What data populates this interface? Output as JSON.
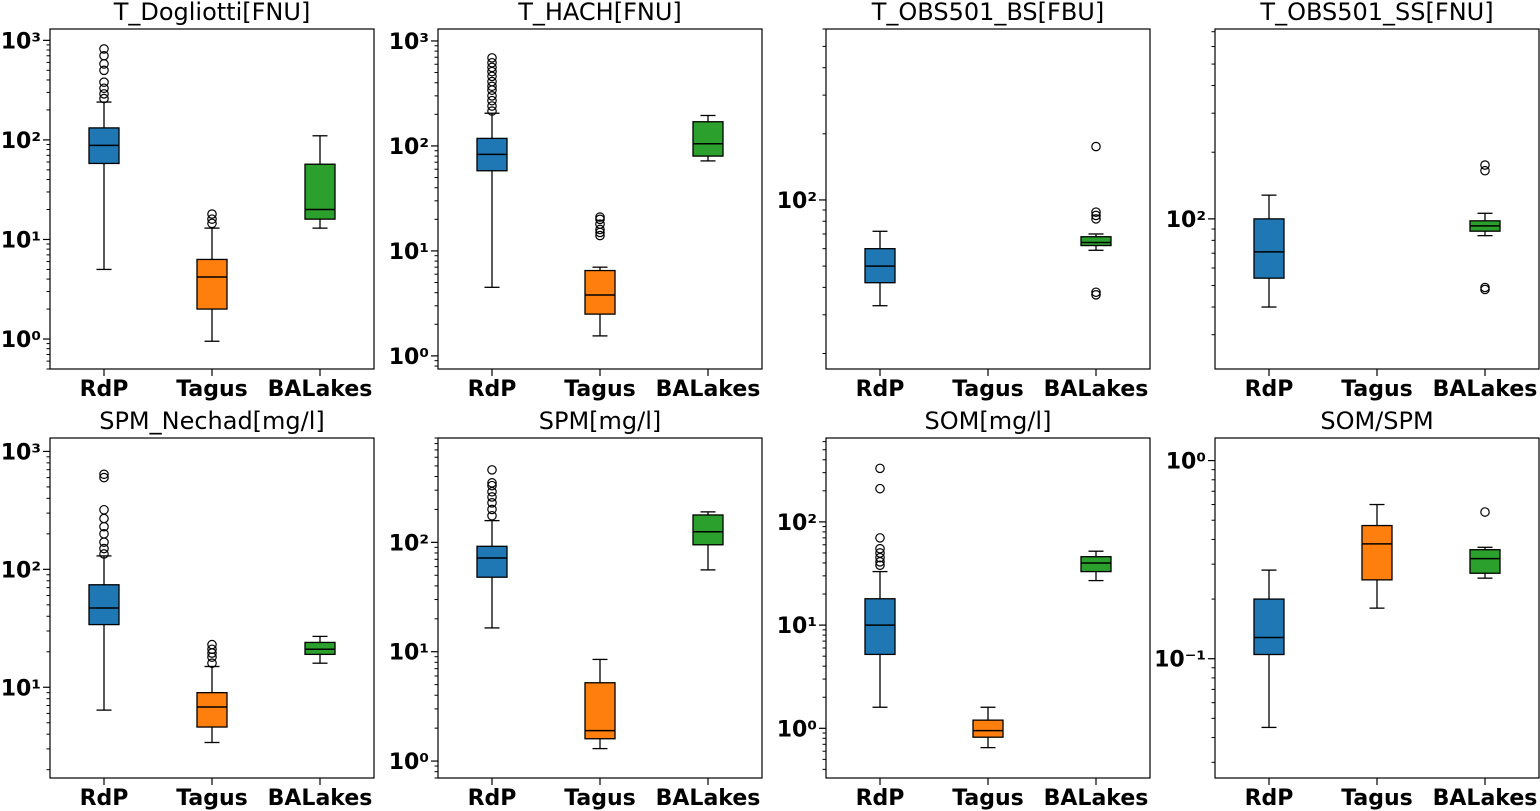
{
  "colors": {
    "RdP": "#1f77b4",
    "Tagus": "#ff7f0e",
    "BALakes": "#2ca02c",
    "outlier": "#000000"
  },
  "chart_data": [
    {
      "type": "boxplot",
      "title": "T_Dogliotti[FNU]",
      "yscale": "log",
      "ylim": [
        0.5,
        1300
      ],
      "categories": [
        "RdP",
        "Tagus",
        "BALakes"
      ],
      "yticks": [
        {
          "v": 1,
          "label": "10⁰"
        },
        {
          "v": 10,
          "label": "10¹"
        },
        {
          "v": 100,
          "label": "10²"
        },
        {
          "v": 1000,
          "label": "10³"
        }
      ],
      "series": [
        {
          "category": "RdP",
          "whislo": 5,
          "q1": 58,
          "med": 88,
          "q3": 132,
          "whishi": 240,
          "fliers": [
            260,
            290,
            330,
            380,
            500,
            580,
            700,
            820
          ]
        },
        {
          "category": "Tagus",
          "whislo": 0.95,
          "q1": 2,
          "med": 4.2,
          "q3": 6.3,
          "whishi": 13,
          "fliers": [
            14.5,
            16,
            18
          ]
        },
        {
          "category": "BALakes",
          "whislo": 13,
          "q1": 16,
          "med": 20,
          "q3": 57,
          "whishi": 110,
          "fliers": []
        }
      ]
    },
    {
      "type": "boxplot",
      "title": "T_HACH[FNU]",
      "yscale": "log",
      "ylim": [
        0.75,
        1300
      ],
      "categories": [
        "RdP",
        "Tagus",
        "BALakes"
      ],
      "yticks": [
        {
          "v": 1,
          "label": "10⁰"
        },
        {
          "v": 10,
          "label": "10¹"
        },
        {
          "v": 100,
          "label": "10²"
        },
        {
          "v": 1000,
          "label": "10³"
        }
      ],
      "series": [
        {
          "category": "RdP",
          "whislo": 4.5,
          "q1": 58,
          "med": 83,
          "q3": 118,
          "whishi": 205,
          "fliers": [
            215,
            240,
            270,
            300,
            340,
            370,
            410,
            460,
            510,
            560,
            620,
            690
          ]
        },
        {
          "category": "Tagus",
          "whislo": 1.55,
          "q1": 2.5,
          "med": 3.8,
          "q3": 6.5,
          "whishi": 7,
          "fliers": [
            14,
            15,
            16,
            18,
            20,
            21
          ]
        },
        {
          "category": "BALakes",
          "whislo": 72,
          "q1": 80,
          "med": 105,
          "q3": 170,
          "whishi": 195,
          "fliers": []
        }
      ]
    },
    {
      "type": "boxplot",
      "title": "T_OBS501_BS[FBU]",
      "yscale": "log",
      "ylim": [
        17,
        600
      ],
      "categories": [
        "RdP",
        "Tagus",
        "BALakes"
      ],
      "yticks": [
        {
          "v": 100,
          "label": "10²"
        }
      ],
      "series": [
        {
          "category": "RdP",
          "whislo": 33,
          "q1": 42,
          "med": 50,
          "q3": 60,
          "whishi": 72,
          "fliers": []
        },
        {
          "category": "BALakes",
          "whislo": 59,
          "q1": 62,
          "med": 64,
          "q3": 68,
          "whishi": 70,
          "fliers": [
            37,
            38,
            82,
            85,
            88,
            175
          ]
        }
      ]
    },
    {
      "type": "boxplot",
      "title": "T_OBS501_SS[FNU]",
      "yscale": "log",
      "ylim": [
        21,
        720
      ],
      "categories": [
        "RdP",
        "Tagus",
        "BALakes"
      ],
      "yticks": [
        {
          "v": 100,
          "label": "10²"
        }
      ],
      "series": [
        {
          "category": "RdP",
          "whislo": 40,
          "q1": 54,
          "med": 71,
          "q3": 100,
          "whishi": 128,
          "fliers": []
        },
        {
          "category": "BALakes",
          "whislo": 84,
          "q1": 88,
          "med": 93,
          "q3": 98,
          "whishi": 106,
          "fliers": [
            48,
            49,
            165,
            175
          ]
        }
      ]
    },
    {
      "type": "boxplot",
      "title": "SPM_Nechad[mg/l]",
      "yscale": "log",
      "ylim": [
        1.7,
        1300
      ],
      "categories": [
        "RdP",
        "Tagus",
        "BALakes"
      ],
      "yticks": [
        {
          "v": 10,
          "label": "10¹"
        },
        {
          "v": 100,
          "label": "10²"
        },
        {
          "v": 1000,
          "label": "10³"
        }
      ],
      "series": [
        {
          "category": "RdP",
          "whislo": 6.4,
          "q1": 34,
          "med": 47,
          "q3": 74,
          "whishi": 130,
          "fliers": [
            135,
            150,
            170,
            200,
            230,
            270,
            320,
            600,
            640
          ]
        },
        {
          "category": "Tagus",
          "whislo": 3.4,
          "q1": 4.6,
          "med": 6.8,
          "q3": 9,
          "whishi": 15,
          "fliers": [
            16,
            18,
            19.5,
            21,
            23
          ]
        },
        {
          "category": "BALakes",
          "whislo": 16,
          "q1": 19,
          "med": 21,
          "q3": 24,
          "whishi": 27,
          "fliers": []
        }
      ]
    },
    {
      "type": "boxplot",
      "title": "SPM[mg/l]",
      "yscale": "log",
      "ylim": [
        0.7,
        900
      ],
      "categories": [
        "RdP",
        "Tagus",
        "BALakes"
      ],
      "yticks": [
        {
          "v": 1,
          "label": "10⁰"
        },
        {
          "v": 10,
          "label": "10¹"
        },
        {
          "v": 100,
          "label": "10²"
        }
      ],
      "series": [
        {
          "category": "RdP",
          "whislo": 16.5,
          "q1": 48,
          "med": 72,
          "q3": 92,
          "whishi": 158,
          "fliers": [
            175,
            200,
            230,
            260,
            290,
            330,
            350,
            460
          ]
        },
        {
          "category": "Tagus",
          "whislo": 1.3,
          "q1": 1.6,
          "med": 1.9,
          "q3": 5.2,
          "whishi": 8.5,
          "fliers": []
        },
        {
          "category": "BALakes",
          "whislo": 56,
          "q1": 95,
          "med": 125,
          "q3": 178,
          "whishi": 190,
          "fliers": []
        }
      ]
    },
    {
      "type": "boxplot",
      "title": "SOM[mg/l]",
      "yscale": "log",
      "ylim": [
        0.33,
        650
      ],
      "categories": [
        "RdP",
        "Tagus",
        "BALakes"
      ],
      "yticks": [
        {
          "v": 1,
          "label": "10⁰"
        },
        {
          "v": 10,
          "label": "10¹"
        },
        {
          "v": 100,
          "label": "10²"
        }
      ],
      "series": [
        {
          "category": "RdP",
          "whislo": 1.6,
          "q1": 5.2,
          "med": 10,
          "q3": 18,
          "whishi": 33,
          "fliers": [
            38,
            41,
            45,
            50,
            55,
            70,
            210,
            330
          ]
        },
        {
          "category": "Tagus",
          "whislo": 0.65,
          "q1": 0.82,
          "med": 0.95,
          "q3": 1.2,
          "whishi": 1.6,
          "fliers": []
        },
        {
          "category": "BALakes",
          "whislo": 27,
          "q1": 33,
          "med": 40,
          "q3": 46,
          "whishi": 52,
          "fliers": []
        }
      ]
    },
    {
      "type": "boxplot",
      "title": "SOM/SPM",
      "yscale": "log",
      "ylim": [
        0.025,
        1.3
      ],
      "categories": [
        "RdP",
        "Tagus",
        "BALakes"
      ],
      "yticks": [
        {
          "v": 0.1,
          "label": "10⁻¹"
        },
        {
          "v": 1,
          "label": "10⁰"
        }
      ],
      "series": [
        {
          "category": "RdP",
          "whislo": 0.045,
          "q1": 0.105,
          "med": 0.128,
          "q3": 0.2,
          "whishi": 0.28,
          "fliers": []
        },
        {
          "category": "Tagus",
          "whislo": 0.18,
          "q1": 0.25,
          "med": 0.38,
          "q3": 0.47,
          "whishi": 0.6,
          "fliers": []
        },
        {
          "category": "BALakes",
          "whislo": 0.255,
          "q1": 0.27,
          "med": 0.32,
          "q3": 0.355,
          "whishi": 0.365,
          "fliers": [
            0.55
          ]
        }
      ]
    }
  ]
}
